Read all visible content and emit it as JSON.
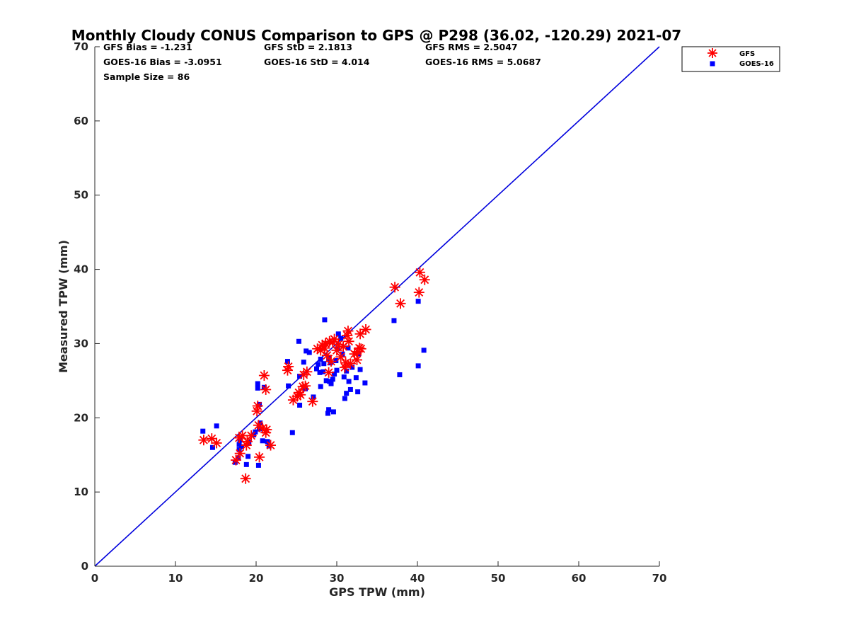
{
  "chart_data": {
    "type": "scatter",
    "title": "Monthly Cloudy CONUS Comparison to GPS @ P298 (36.02, -120.29) 2021-07",
    "xlabel": "GPS TPW (mm)",
    "ylabel": "Measured TPW (mm)",
    "xlim": [
      0,
      70
    ],
    "ylim": [
      0,
      70
    ],
    "xticks": [
      "0",
      "10",
      "20",
      "30",
      "40",
      "50",
      "60",
      "70"
    ],
    "yticks": [
      "0",
      "10",
      "20",
      "30",
      "40",
      "50",
      "60",
      "70"
    ],
    "grid": false,
    "legend_position": "top-right",
    "stats": {
      "gfs_bias": "GFS Bias = -1.231",
      "gfs_std": "GFS StD = 2.1813",
      "gfs_rms": "GFS RMS = 2.5047",
      "goes_bias": "GOES-16 Bias = -3.0951",
      "goes_std": "GOES-16 StD = 4.014",
      "goes_rms": "GOES-16 RMS = 5.0687",
      "sample_size": "Sample Size = 86"
    },
    "one_to_one_line": {
      "x": [
        0,
        70
      ],
      "y": [
        0,
        70
      ],
      "color": "#0000dd"
    },
    "series": [
      {
        "name": "GFS",
        "marker": "asterisk",
        "color": "#ff0000",
        "points": [
          [
            13.5,
            17.0
          ],
          [
            14.5,
            17.2
          ],
          [
            15.1,
            16.6
          ],
          [
            17.5,
            14.3
          ],
          [
            17.9,
            17.3
          ],
          [
            18.0,
            15.2
          ],
          [
            18.3,
            17.6
          ],
          [
            18.8,
            16.3
          ],
          [
            18.9,
            16.8
          ],
          [
            18.7,
            11.8
          ],
          [
            19.4,
            17.6
          ],
          [
            20.1,
            20.9
          ],
          [
            20.2,
            21.6
          ],
          [
            20.3,
            19.0
          ],
          [
            20.4,
            14.7
          ],
          [
            20.8,
            18.6
          ],
          [
            21.0,
            25.7
          ],
          [
            21.2,
            23.8
          ],
          [
            21.2,
            18.0
          ],
          [
            21.3,
            18.4
          ],
          [
            21.8,
            16.3
          ],
          [
            23.9,
            26.4
          ],
          [
            24.0,
            26.9
          ],
          [
            24.6,
            22.4
          ],
          [
            25.1,
            22.9
          ],
          [
            25.3,
            23.4
          ],
          [
            25.5,
            23.1
          ],
          [
            25.8,
            24.2
          ],
          [
            25.9,
            25.8
          ],
          [
            26.1,
            24.3
          ],
          [
            26.3,
            26.2
          ],
          [
            27.0,
            22.2
          ],
          [
            27.6,
            29.3
          ],
          [
            28.0,
            29.1
          ],
          [
            28.2,
            29.8
          ],
          [
            28.5,
            29.4
          ],
          [
            28.6,
            30.0
          ],
          [
            28.8,
            28.4
          ],
          [
            29.0,
            26.1
          ],
          [
            29.1,
            30.3
          ],
          [
            29.3,
            27.6
          ],
          [
            29.5,
            30.2
          ],
          [
            29.7,
            30.6
          ],
          [
            30.0,
            29.1
          ],
          [
            30.2,
            29.9
          ],
          [
            30.5,
            28.2
          ],
          [
            30.8,
            29.6
          ],
          [
            31.0,
            26.8
          ],
          [
            31.1,
            27.4
          ],
          [
            31.3,
            31.1
          ],
          [
            31.4,
            31.7
          ],
          [
            31.5,
            30.3
          ],
          [
            31.7,
            27.3
          ],
          [
            32.2,
            28.6
          ],
          [
            32.5,
            27.8
          ],
          [
            32.6,
            28.9
          ],
          [
            32.8,
            29.4
          ],
          [
            32.9,
            31.3
          ],
          [
            33.0,
            29.3
          ],
          [
            33.6,
            31.9
          ],
          [
            37.2,
            37.6
          ],
          [
            37.9,
            35.4
          ],
          [
            40.2,
            36.9
          ],
          [
            40.3,
            39.6
          ],
          [
            40.9,
            38.6
          ]
        ]
      },
      {
        "name": "GOES-16",
        "marker": "square",
        "color": "#0000ff",
        "points": [
          [
            13.4,
            18.2
          ],
          [
            14.6,
            16.0
          ],
          [
            15.1,
            18.9
          ],
          [
            17.4,
            14.0
          ],
          [
            17.8,
            14.6
          ],
          [
            17.9,
            15.7
          ],
          [
            17.9,
            16.4
          ],
          [
            18.0,
            17.0
          ],
          [
            18.2,
            16.1
          ],
          [
            18.8,
            13.7
          ],
          [
            19.0,
            14.8
          ],
          [
            19.1,
            16.7
          ],
          [
            19.7,
            17.7
          ],
          [
            19.9,
            18.1
          ],
          [
            20.2,
            24.0
          ],
          [
            20.2,
            24.6
          ],
          [
            20.3,
            13.6
          ],
          [
            20.4,
            21.8
          ],
          [
            20.4,
            18.5
          ],
          [
            20.5,
            19.3
          ],
          [
            20.8,
            16.9
          ],
          [
            21.0,
            24.1
          ],
          [
            21.4,
            16.8
          ],
          [
            21.6,
            16.2
          ],
          [
            23.9,
            27.6
          ],
          [
            24.0,
            24.3
          ],
          [
            24.5,
            18.0
          ],
          [
            25.3,
            30.3
          ],
          [
            25.4,
            21.7
          ],
          [
            25.4,
            25.6
          ],
          [
            25.9,
            27.5
          ],
          [
            26.1,
            23.9
          ],
          [
            26.2,
            29.0
          ],
          [
            26.6,
            28.8
          ],
          [
            27.1,
            22.8
          ],
          [
            27.5,
            26.6
          ],
          [
            27.7,
            27.2
          ],
          [
            27.9,
            26.1
          ],
          [
            28.0,
            27.9
          ],
          [
            28.0,
            24.2
          ],
          [
            28.3,
            26.2
          ],
          [
            28.4,
            27.3
          ],
          [
            28.5,
            33.2
          ],
          [
            28.7,
            25.0
          ],
          [
            28.9,
            20.6
          ],
          [
            29.0,
            21.1
          ],
          [
            29.0,
            28.0
          ],
          [
            29.1,
            24.9
          ],
          [
            29.2,
            27.4
          ],
          [
            29.3,
            24.6
          ],
          [
            29.5,
            25.2
          ],
          [
            29.6,
            20.8
          ],
          [
            29.7,
            25.9
          ],
          [
            29.9,
            27.7
          ],
          [
            30.0,
            26.4
          ],
          [
            30.1,
            29.3
          ],
          [
            30.2,
            31.3
          ],
          [
            30.5,
            30.7
          ],
          [
            30.7,
            28.6
          ],
          [
            30.9,
            25.5
          ],
          [
            31.0,
            22.6
          ],
          [
            31.2,
            23.3
          ],
          [
            31.2,
            26.3
          ],
          [
            31.4,
            29.4
          ],
          [
            31.5,
            24.9
          ],
          [
            31.7,
            23.8
          ],
          [
            31.9,
            26.8
          ],
          [
            32.4,
            25.4
          ],
          [
            32.6,
            23.5
          ],
          [
            32.7,
            28.6
          ],
          [
            32.9,
            26.5
          ],
          [
            33.5,
            24.7
          ],
          [
            37.1,
            33.1
          ],
          [
            37.8,
            25.8
          ],
          [
            40.1,
            35.7
          ],
          [
            40.1,
            27.0
          ],
          [
            40.8,
            29.1
          ]
        ]
      }
    ]
  }
}
